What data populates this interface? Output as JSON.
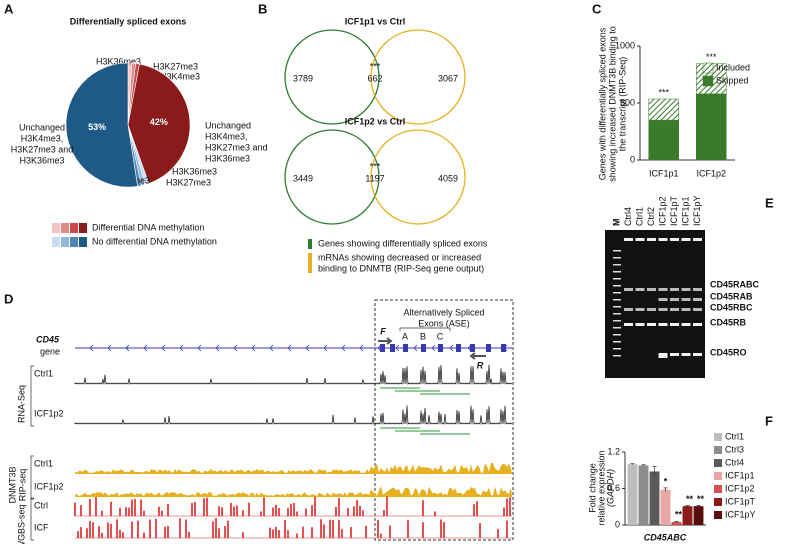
{
  "panel_a": {
    "letter": "A",
    "chart": {
      "type": "pie",
      "title": "Differentially spliced exons",
      "slices": [
        {
          "label": [
            "H3K36me3"
          ],
          "value": 1,
          "color": "#f2c4c4"
        },
        {
          "label": [
            "H3K27me3"
          ],
          "value": 1,
          "color": "#e08a8a"
        },
        {
          "label": [
            "H3K4me3"
          ],
          "value": 1,
          "color": "#c94b4b"
        },
        {
          "label": [
            "Unchanged",
            "H3K4me3,",
            "H3K27me3 and",
            "H3K36me3"
          ],
          "value": 42,
          "value_label": "42%",
          "color": "#8b1a1a"
        },
        {
          "label": [
            "H3K36me3"
          ],
          "value": 1,
          "color": "#c6dcef"
        },
        {
          "label": [
            "H3K27me3"
          ],
          "value": 1,
          "color": "#8fb8dc"
        },
        {
          "label": [
            "H3K4me3"
          ],
          "value": 1,
          "color": "#4f86b8"
        },
        {
          "label": [
            "Unchanged",
            "H3K4me3,",
            "H3K27me3 and",
            "H3K36me3"
          ],
          "value": 53,
          "value_label": "53%",
          "color": "#1f5a86"
        }
      ],
      "legend": [
        {
          "label": "Differential DNA methylation",
          "colors": [
            "#f2c4c4",
            "#e08a8a",
            "#c94b4b",
            "#8b1a1a"
          ]
        },
        {
          "label": "No differential DNA methylation",
          "colors": [
            "#c6dcef",
            "#8fb8dc",
            "#4f86b8",
            "#1f5a86"
          ]
        }
      ]
    }
  },
  "panel_b": {
    "letter": "B",
    "venns": [
      {
        "title": "ICF1p1 vs Ctrl",
        "left": "3789",
        "overlap": "662",
        "right": "3067",
        "significance": "***"
      },
      {
        "title": "ICF1p2 vs Ctrl",
        "left": "3449",
        "overlap": "1197",
        "right": "4059",
        "significance": "***"
      }
    ],
    "legend": [
      {
        "text": [
          "Genes showing differentially spliced exons"
        ],
        "color": "#2e7d32"
      },
      {
        "text": [
          "mRNAs showing decreased or increased",
          "binding to DNMTB (RIP-Seq gene output)"
        ],
        "color": "#e6b020"
      }
    ]
  },
  "panel_c": {
    "letter": "C",
    "chart": {
      "type": "stacked-bar",
      "y_label": [
        "Genes with differentially spliced exons",
        "showing increased DNMT3B binding to",
        "the transcript (RIP-Seq)"
      ],
      "categories": [
        "ICF1p1",
        "ICF1p2"
      ],
      "series": [
        {
          "name": "Skipped",
          "color": "#3a7a2a",
          "values": [
            350,
            580
          ]
        },
        {
          "name": "Included",
          "color": "#3a7a2a",
          "hatched": true,
          "values": [
            185,
            265
          ]
        }
      ],
      "significance": [
        "***",
        "***"
      ],
      "ylim": [
        0,
        1000
      ],
      "yticks": [
        0,
        500,
        1000
      ]
    }
  },
  "panel_d": {
    "letter": "D",
    "gene": "CD45",
    "gene_sub": "gene",
    "ase_title": [
      "Alternatively Spliced",
      "Exons (ASE)"
    ],
    "exons": [
      "A",
      "B",
      "C"
    ],
    "primers": [
      "F",
      "R"
    ],
    "groups": [
      {
        "label": [
          "RNA-Seq"
        ],
        "tracks": [
          "Ctrl1",
          "ICF1p2"
        ],
        "color": "#111111"
      },
      {
        "label": [
          "DNMT3B",
          "RIP-seq"
        ],
        "tracks": [
          "Ctrl1",
          "ICF1p2"
        ],
        "color": "#e6b020"
      },
      {
        "label": [
          "WGBS-seq"
        ],
        "tracks": [
          "Ctrl",
          "ICF"
        ],
        "color": "#e02424"
      }
    ]
  },
  "panel_e": {
    "letter": "E",
    "lanes": [
      "M",
      "Ctrl4",
      "Ctrl1",
      "Ctrl2",
      "ICF1p2",
      "ICF1pT",
      "ICF1p1",
      "ICF1pY"
    ],
    "bands": [
      "CD45RABC",
      "CD45RAB",
      "CD45RBC",
      "CD45RB",
      "CD45RO"
    ]
  },
  "panel_f": {
    "letter": "F",
    "chart": {
      "type": "bar",
      "y_label": [
        "Fold change",
        "relative expression",
        "(GAPDH)"
      ],
      "x_label": "CD45ABC",
      "categories": [
        "Ctrl1",
        "Ctrl3",
        "Ctrl4",
        "ICF1p1",
        "ICF1p2",
        "ICF1pT",
        "ICF1pY"
      ],
      "values": [
        1.0,
        0.98,
        0.88,
        0.58,
        0.05,
        0.31,
        0.31
      ],
      "errors": [
        0.01,
        0.01,
        0.08,
        0.03,
        0.01,
        0.01,
        0.01
      ],
      "colors": [
        "#bdbdbd",
        "#8c8c8c",
        "#5a5a5a",
        "#eaa5a5",
        "#d55050",
        "#8b1a1a",
        "#5a0d0d"
      ],
      "significance": [
        null,
        null,
        null,
        "*",
        "**",
        "**",
        "**"
      ],
      "ylim": [
        0,
        1.2
      ],
      "yticks": [
        0,
        0.6,
        1.2
      ]
    }
  }
}
